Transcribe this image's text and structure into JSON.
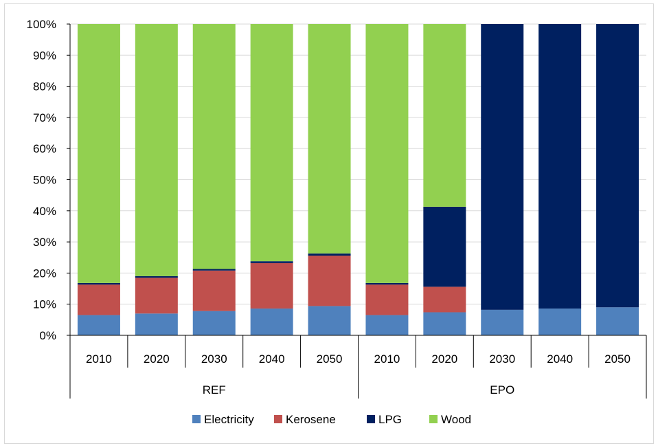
{
  "chart_data": {
    "type": "bar",
    "stacked": "percent",
    "groups": [
      {
        "label": "REF",
        "categories": [
          "2010",
          "2020",
          "2030",
          "2040",
          "2050"
        ]
      },
      {
        "label": "EPO",
        "categories": [
          "2010",
          "2020",
          "2030",
          "2040",
          "2050"
        ]
      }
    ],
    "categories": [
      "2010",
      "2020",
      "2030",
      "2040",
      "2050",
      "2010",
      "2020",
      "2030",
      "2040",
      "2050"
    ],
    "series": [
      {
        "name": "Electricity",
        "color": "#4f81bd",
        "values": [
          6.5,
          7.0,
          7.8,
          8.6,
          9.4,
          6.5,
          7.4,
          8.2,
          8.6,
          9.0
        ]
      },
      {
        "name": "Kerosene",
        "color": "#c0504d",
        "values": [
          9.8,
          11.5,
          13.0,
          14.6,
          16.2,
          9.8,
          8.2,
          0.0,
          0.0,
          0.0
        ]
      },
      {
        "name": "LPG",
        "color": "#002060",
        "values": [
          0.5,
          0.5,
          0.5,
          0.6,
          0.7,
          0.5,
          25.7,
          91.8,
          91.4,
          91.0
        ]
      },
      {
        "name": "Wood",
        "color": "#92d050",
        "values": [
          83.2,
          81.0,
          78.7,
          76.2,
          73.7,
          83.2,
          58.7,
          0.0,
          0.0,
          0.0
        ]
      }
    ],
    "y_ticks": [
      "0%",
      "10%",
      "20%",
      "30%",
      "40%",
      "50%",
      "60%",
      "70%",
      "80%",
      "90%",
      "100%"
    ],
    "ylim": [
      0,
      100
    ],
    "grid": true,
    "legend_position": "bottom"
  }
}
